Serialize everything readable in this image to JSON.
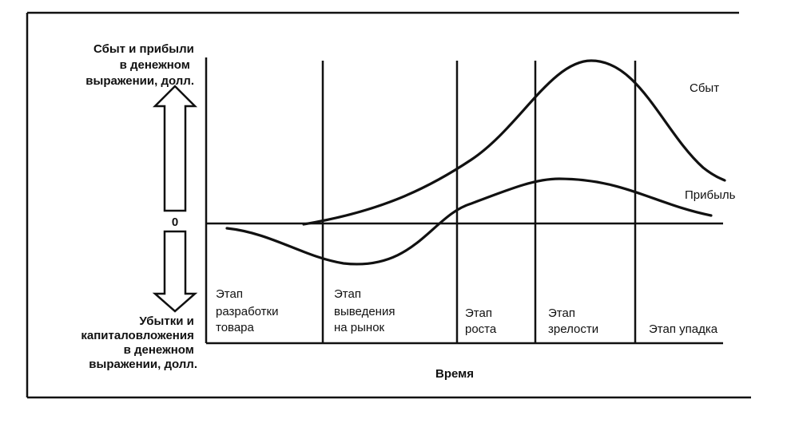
{
  "colors": {
    "ink": "#111111",
    "paper": "#ffffff"
  },
  "chart_data": {
    "type": "line",
    "xlabel": "Время",
    "y_upper_label": [
      "Сбыт и прибыли",
      "в денежном",
      "выражении, долл."
    ],
    "y_lower_label": [
      "Убытки и",
      "капиталовложения",
      "в денежном",
      "выражении, долл."
    ],
    "zero_label": "0",
    "grid": false,
    "stages": [
      {
        "lines": [
          "Этап",
          "разработки",
          "товара"
        ]
      },
      {
        "lines": [
          "Этап",
          "выведения",
          "на рынок"
        ]
      },
      {
        "lines": [
          "Этап",
          "роста"
        ]
      },
      {
        "lines": [
          "Этап",
          "зрелости"
        ]
      },
      {
        "lines": [
          "Этап упадка"
        ]
      }
    ],
    "series": [
      {
        "name": "Сбыт"
      },
      {
        "name": "Прибыль"
      }
    ]
  }
}
